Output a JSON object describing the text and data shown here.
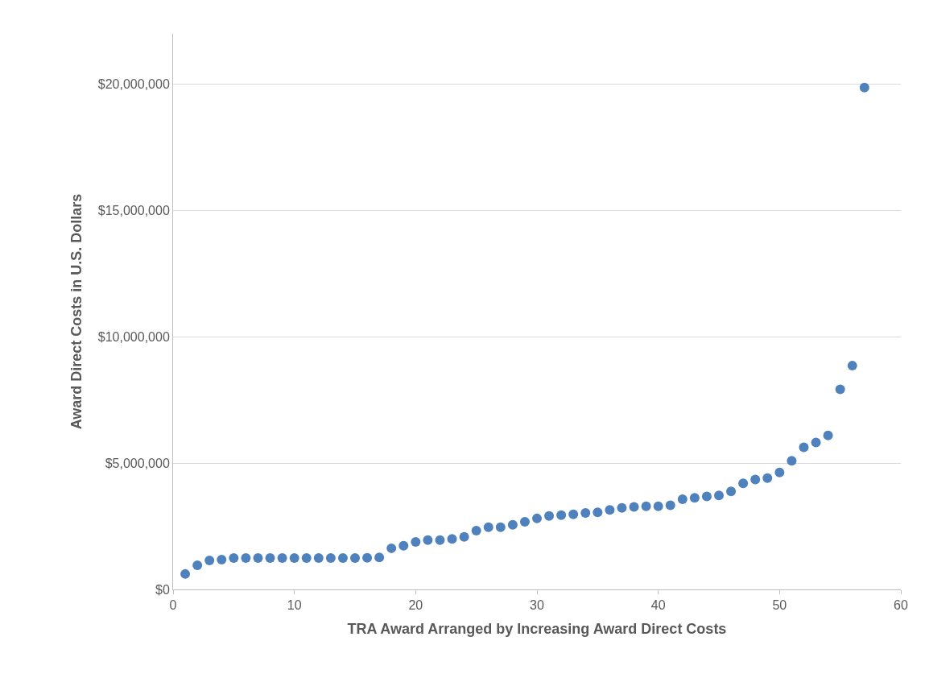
{
  "chart_data": {
    "type": "scatter",
    "xlabel": "TRA Award Arranged by Increasing Award Direct Costs",
    "ylabel": "Award Direct Costs in U.S. Dollars",
    "x": [
      1,
      2,
      3,
      4,
      5,
      6,
      7,
      8,
      9,
      10,
      11,
      12,
      13,
      14,
      15,
      16,
      17,
      18,
      19,
      20,
      21,
      22,
      23,
      24,
      25,
      26,
      27,
      28,
      29,
      30,
      31,
      32,
      33,
      34,
      35,
      36,
      37,
      38,
      39,
      40,
      41,
      42,
      43,
      44,
      45,
      46,
      47,
      48,
      49,
      50,
      51,
      52,
      53,
      54,
      55,
      56,
      57
    ],
    "series": [
      {
        "color": "#4f81bd",
        "values": [
          610000,
          960000,
          1150000,
          1180000,
          1240000,
          1240000,
          1240000,
          1240000,
          1240000,
          1240000,
          1240000,
          1240000,
          1240000,
          1240000,
          1240000,
          1250000,
          1270000,
          1630000,
          1730000,
          1880000,
          1950000,
          1950000,
          2000000,
          2080000,
          2330000,
          2460000,
          2460000,
          2560000,
          2680000,
          2810000,
          2910000,
          2940000,
          2970000,
          3030000,
          3050000,
          3150000,
          3230000,
          3270000,
          3290000,
          3290000,
          3330000,
          3570000,
          3630000,
          3680000,
          3720000,
          3880000,
          4200000,
          4350000,
          4410000,
          4630000,
          5090000,
          5630000,
          5820000,
          6100000,
          7920000,
          8860000,
          19870000
        ]
      }
    ],
    "xlim": [
      0,
      60
    ],
    "xticks": [
      0,
      10,
      20,
      30,
      40,
      50,
      60
    ],
    "ylim": [
      0,
      22000000
    ],
    "yticks": [
      {
        "value": 0,
        "label": "$0"
      },
      {
        "value": 5000000,
        "label": "$5,000,000"
      },
      {
        "value": 10000000,
        "label": "$10,000,000"
      },
      {
        "value": 15000000,
        "label": "$15,000,000"
      },
      {
        "value": 20000000,
        "label": "$20,000,000"
      }
    ],
    "grid": "y",
    "marker": "circle"
  }
}
